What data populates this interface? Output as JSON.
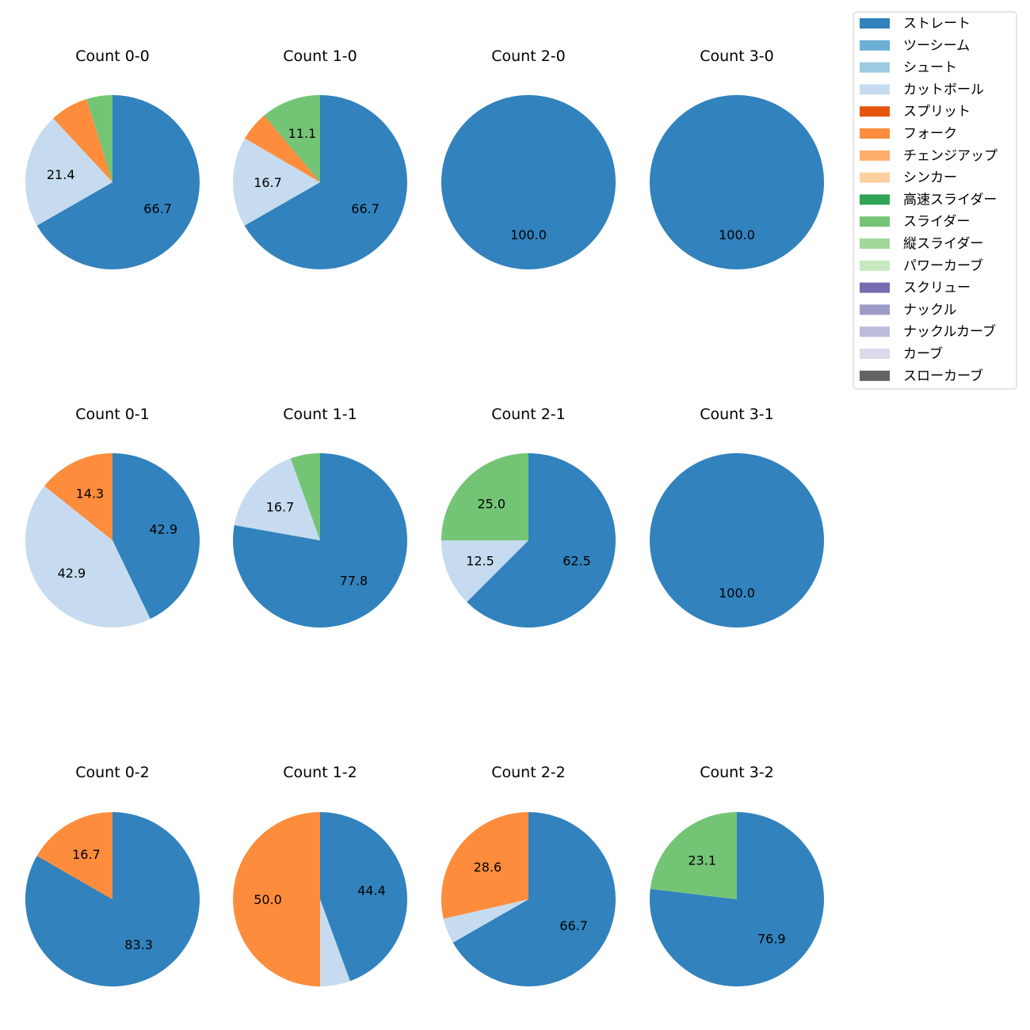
{
  "chart_data": {
    "type": "pie",
    "series_names": [
      "ストレート",
      "ツーシーム",
      "シュート",
      "カットボール",
      "スプリット",
      "フォーク",
      "チェンジアップ",
      "シンカー",
      "高速スライダー",
      "スライダー",
      "縦スライダー",
      "パワーカーブ",
      "スクリュー",
      "ナックル",
      "ナックルカーブ",
      "カーブ",
      "スローカーブ"
    ],
    "colors": [
      "#3182bd",
      "#6baed6",
      "#9ecae1",
      "#c6dbef",
      "#e6550d",
      "#fd8d3c",
      "#fdae6b",
      "#fdd0a2",
      "#31a354",
      "#74c476",
      "#a1d99b",
      "#c7e9c0",
      "#756bb1",
      "#9e9ac8",
      "#bcbddc",
      "#dadaeb",
      "#636363"
    ],
    "charts": [
      {
        "title": "Count 0-0",
        "slices": [
          {
            "name": "ストレート",
            "value": 66.7,
            "label": "66.7"
          },
          {
            "name": "カットボール",
            "value": 21.4,
            "label": "21.4"
          },
          {
            "name": "フォーク",
            "value": 7.1,
            "label": ""
          },
          {
            "name": "スライダー",
            "value": 4.8,
            "label": ""
          }
        ]
      },
      {
        "title": "Count 1-0",
        "slices": [
          {
            "name": "ストレート",
            "value": 66.7,
            "label": "66.7"
          },
          {
            "name": "カットボール",
            "value": 16.7,
            "label": "16.7"
          },
          {
            "name": "フォーク",
            "value": 5.5,
            "label": ""
          },
          {
            "name": "スライダー",
            "value": 11.1,
            "label": "11.1"
          }
        ]
      },
      {
        "title": "Count 2-0",
        "slices": [
          {
            "name": "ストレート",
            "value": 100.0,
            "label": "100.0"
          }
        ]
      },
      {
        "title": "Count 3-0",
        "slices": [
          {
            "name": "ストレート",
            "value": 100.0,
            "label": "100.0"
          }
        ]
      },
      {
        "title": "Count 0-1",
        "slices": [
          {
            "name": "ストレート",
            "value": 42.9,
            "label": "42.9"
          },
          {
            "name": "カットボール",
            "value": 42.9,
            "label": "42.9"
          },
          {
            "name": "フォーク",
            "value": 14.3,
            "label": "14.3"
          }
        ]
      },
      {
        "title": "Count 1-1",
        "slices": [
          {
            "name": "ストレート",
            "value": 77.8,
            "label": "77.8"
          },
          {
            "name": "カットボール",
            "value": 16.7,
            "label": "16.7"
          },
          {
            "name": "スライダー",
            "value": 5.5,
            "label": ""
          }
        ]
      },
      {
        "title": "Count 2-1",
        "slices": [
          {
            "name": "ストレート",
            "value": 62.5,
            "label": "62.5"
          },
          {
            "name": "カットボール",
            "value": 12.5,
            "label": "12.5"
          },
          {
            "name": "スライダー",
            "value": 25.0,
            "label": "25.0"
          }
        ]
      },
      {
        "title": "Count 3-1",
        "slices": [
          {
            "name": "ストレート",
            "value": 100.0,
            "label": "100.0"
          }
        ]
      },
      {
        "title": "Count 0-2",
        "slices": [
          {
            "name": "ストレート",
            "value": 83.3,
            "label": "83.3"
          },
          {
            "name": "フォーク",
            "value": 16.7,
            "label": "16.7"
          }
        ]
      },
      {
        "title": "Count 1-2",
        "slices": [
          {
            "name": "ストレート",
            "value": 44.4,
            "label": "44.4"
          },
          {
            "name": "カットボール",
            "value": 5.6,
            "label": ""
          },
          {
            "name": "フォーク",
            "value": 50.0,
            "label": "50.0"
          }
        ]
      },
      {
        "title": "Count 2-2",
        "slices": [
          {
            "name": "ストレート",
            "value": 66.7,
            "label": "66.7"
          },
          {
            "name": "カットボール",
            "value": 4.7,
            "label": ""
          },
          {
            "name": "フォーク",
            "value": 28.6,
            "label": "28.6"
          }
        ]
      },
      {
        "title": "Count 3-2",
        "slices": [
          {
            "name": "ストレート",
            "value": 76.9,
            "label": "76.9"
          },
          {
            "name": "スライダー",
            "value": 23.1,
            "label": "23.1"
          }
        ]
      }
    ],
    "legend_position": "top-right"
  }
}
